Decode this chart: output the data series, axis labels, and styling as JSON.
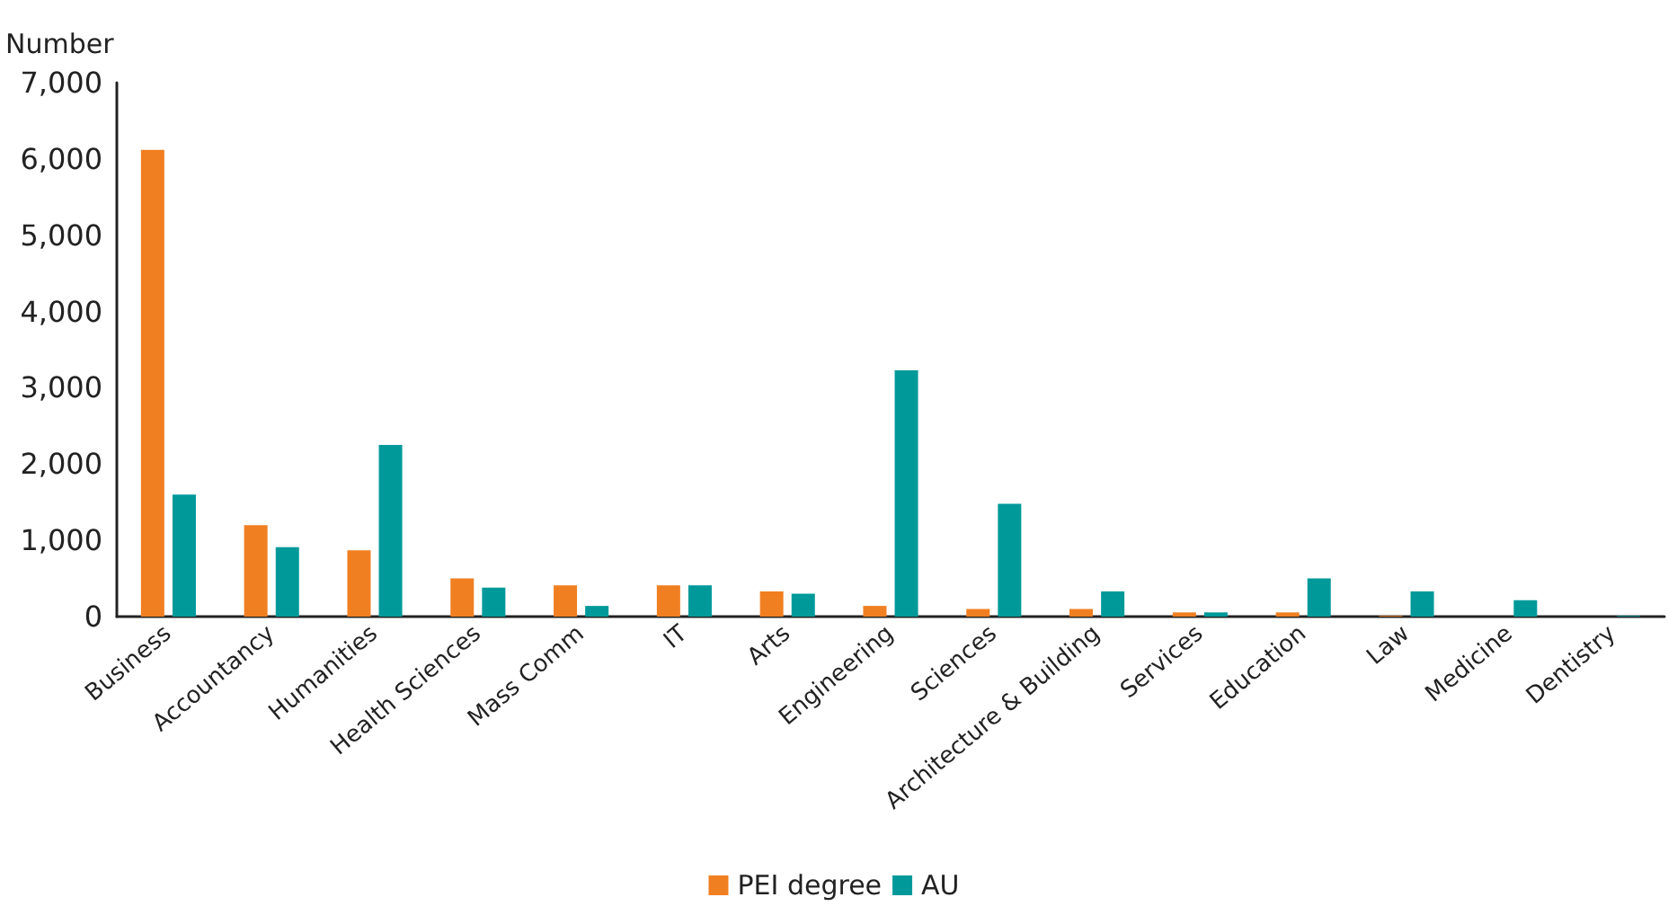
{
  "chart_data": {
    "type": "bar",
    "ylabel": "Number",
    "categories": [
      "Business",
      "Accountancy",
      "Humanities",
      "Health Sciences",
      "Mass Comm",
      "IT",
      "Arts",
      "Engineering",
      "Sciences",
      "Architecture & Building",
      "Services",
      "Education",
      "Law",
      "Medicine",
      "Dentistry"
    ],
    "series": [
      {
        "name": "PEI degree",
        "color": "#f07f22",
        "values": [
          6120,
          1200,
          870,
          500,
          410,
          410,
          330,
          140,
          100,
          100,
          55,
          55,
          10,
          0,
          0
        ]
      },
      {
        "name": "AU",
        "color": "#00999a",
        "values": [
          1600,
          910,
          2250,
          380,
          140,
          410,
          300,
          3230,
          1480,
          330,
          55,
          500,
          330,
          215,
          10
        ]
      }
    ],
    "ylim": [
      0,
      7000
    ],
    "yticks": [
      {
        "value": 0,
        "label": "0"
      },
      {
        "value": 1000,
        "label": "1,000"
      },
      {
        "value": 2000,
        "label": "2,000"
      },
      {
        "value": 3000,
        "label": "3,000"
      },
      {
        "value": 4000,
        "label": "4,000"
      },
      {
        "value": 5000,
        "label": "5,000"
      },
      {
        "value": 6000,
        "label": "6,000"
      },
      {
        "value": 7000,
        "label": "7,000"
      }
    ],
    "grid": false,
    "legend": "bottom"
  }
}
